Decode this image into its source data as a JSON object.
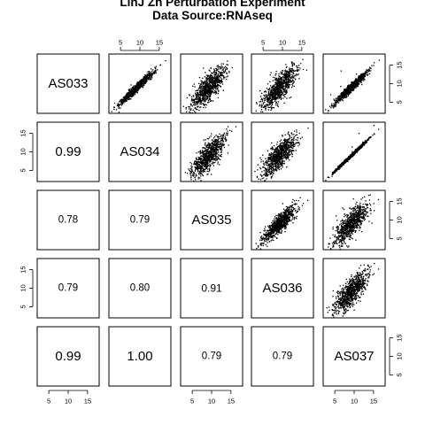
{
  "title": [
    "LinJ Zn Perturbation Experiment",
    "Data Source:RNAseq"
  ],
  "chart_data": {
    "type": "scatter",
    "title": "LinJ Zn Perturbation Experiment\nData Source:RNAseq",
    "layout": "scatterplot-matrix",
    "samples": [
      "AS033",
      "AS034",
      "AS035",
      "AS036",
      "AS037"
    ],
    "axis_range": [
      2,
      18
    ],
    "ticks": [
      5,
      10,
      15
    ],
    "correlation_matrix": [
      [
        1.0,
        0.99,
        0.78,
        0.79,
        0.99
      ],
      [
        0.99,
        1.0,
        0.79,
        0.8,
        1.0
      ],
      [
        0.78,
        0.79,
        1.0,
        0.91,
        0.79
      ],
      [
        0.79,
        0.8,
        0.91,
        1.0,
        0.79
      ],
      [
        0.99,
        1.0,
        0.79,
        0.79,
        1.0
      ]
    ],
    "lower_panel_labels": [
      {
        "row": 1,
        "col": 0,
        "label": "0.99"
      },
      {
        "row": 2,
        "col": 0,
        "label": "0.78"
      },
      {
        "row": 2,
        "col": 1,
        "label": "0.79"
      },
      {
        "row": 3,
        "col": 0,
        "label": "0.79"
      },
      {
        "row": 3,
        "col": 1,
        "label": "0.80"
      },
      {
        "row": 3,
        "col": 2,
        "label": "0.91"
      },
      {
        "row": 4,
        "col": 0,
        "label": "0.99"
      },
      {
        "row": 4,
        "col": 1,
        "label": "1.00"
      },
      {
        "row": 4,
        "col": 2,
        "label": "0.79"
      },
      {
        "row": 4,
        "col": 3,
        "label": "0.79"
      }
    ],
    "grid": false,
    "legend": "none"
  }
}
